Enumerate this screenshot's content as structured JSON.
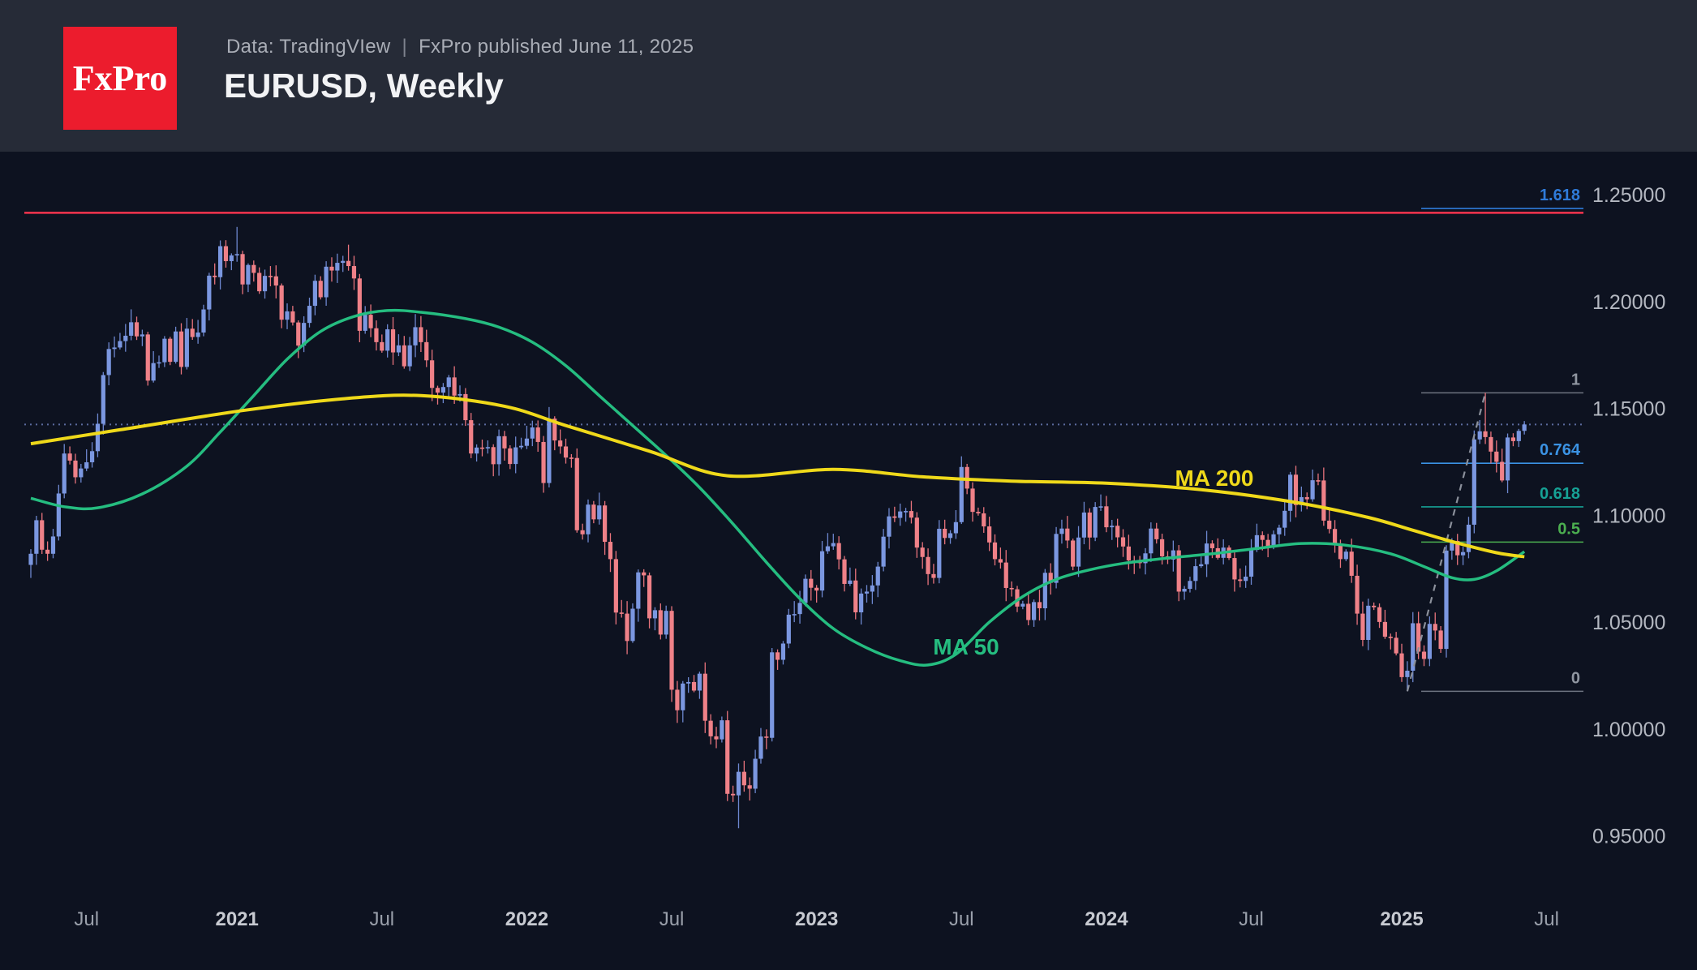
{
  "header": {
    "logo_text": "FxPro",
    "data_source": "Data: TradingVIew",
    "separator": "|",
    "published": "FxPro published June 11, 2025",
    "title": "EURUSD, Weekly"
  },
  "colors": {
    "header_bg": "#262b37",
    "chart_bg": "#0d1220",
    "logo_red": "#ec1c2d",
    "bull_body": "#7b97e0",
    "bull_wick": "#6d87cf",
    "bear_body": "#ef8188",
    "bear_wick": "#e8737c",
    "ma50": "#25bd80",
    "ma200": "#efd91a",
    "red_line": "#f5344e",
    "last_price_dotted": "#5b6b9e",
    "trendline_dashed": "#8b909b",
    "fib_blue_deep": "#2f7bd9",
    "fib_blue": "#3b93e4",
    "fib_teal": "#16a195",
    "fib_green": "#4caf50",
    "fib_gray_text": "#9096a1",
    "fib_gray_line": "#6e7480"
  },
  "chart_data": {
    "type": "candlestick",
    "symbol": "EURUSD",
    "timeframe": "Weekly",
    "title": "EURUSD, Weekly",
    "legend_entries": [
      "MA 50",
      "MA 200"
    ],
    "grid": false,
    "y_axis": {
      "side": "right",
      "range": [
        0.93,
        1.27
      ],
      "ticks": [
        {
          "label": "1.25000",
          "price": 1.25
        },
        {
          "label": "1.20000",
          "price": 1.2
        },
        {
          "label": "1.15000",
          "price": 1.15
        },
        {
          "label": "1.10000",
          "price": 1.1
        },
        {
          "label": "1.05000",
          "price": 1.05
        },
        {
          "label": "1.00000",
          "price": 1.0
        },
        {
          "label": "0.95000",
          "price": 0.95
        }
      ]
    },
    "x_axis": {
      "first_candle_week_of": "2020-04-20",
      "weeks_per_candle": 1,
      "ticks": [
        {
          "label": "Jul",
          "week": 10,
          "major": false
        },
        {
          "label": "2021",
          "week": 37,
          "major": true
        },
        {
          "label": "Jul",
          "week": 63,
          "major": false
        },
        {
          "label": "2022",
          "week": 89,
          "major": true
        },
        {
          "label": "Jul",
          "week": 115,
          "major": false
        },
        {
          "label": "2023",
          "week": 141,
          "major": true
        },
        {
          "label": "Jul",
          "week": 167,
          "major": false
        },
        {
          "label": "2024",
          "week": 193,
          "major": true
        },
        {
          "label": "Jul",
          "week": 219,
          "major": false
        },
        {
          "label": "2025",
          "week": 246,
          "major": true
        },
        {
          "label": "Jul",
          "week": 272,
          "major": false
        }
      ]
    },
    "first_open": 1.0768,
    "weekly_closes": [
      1.082,
      1.0977,
      1.0839,
      1.082,
      1.0901,
      1.1102,
      1.1289,
      1.1256,
      1.1178,
      1.1219,
      1.1248,
      1.13,
      1.1428,
      1.1656,
      1.1778,
      1.1785,
      1.1815,
      1.184,
      1.1903,
      1.1837,
      1.1846,
      1.163,
      1.1712,
      1.1716,
      1.1826,
      1.1718,
      1.186,
      1.1694,
      1.1873,
      1.1834,
      1.1855,
      1.1963,
      1.2121,
      1.2114,
      1.2259,
      1.2189,
      1.2216,
      1.2222,
      1.208,
      1.2171,
      1.2134,
      1.2048,
      1.212,
      1.2118,
      1.2075,
      1.1915,
      1.1954,
      1.1902,
      1.1794,
      1.19,
      1.198,
      1.2097,
      1.202,
      1.2163,
      1.2145,
      1.2181,
      1.219,
      1.2166,
      1.2108,
      1.1863,
      1.1938,
      1.1875,
      1.181,
      1.177,
      1.187,
      1.1762,
      1.1795,
      1.1697,
      1.1795,
      1.188,
      1.181,
      1.1725,
      1.1596,
      1.1574,
      1.16,
      1.1645,
      1.156,
      1.1567,
      1.1445,
      1.1289,
      1.1317,
      1.1313,
      1.1319,
      1.1239,
      1.137,
      1.1313,
      1.124,
      1.1318,
      1.1325,
      1.1359,
      1.1411,
      1.1343,
      1.1151,
      1.1452,
      1.135,
      1.1322,
      1.127,
      1.1268,
      1.093,
      1.0911,
      1.105,
      1.0981,
      1.1046,
      1.0876,
      1.0795,
      1.0545,
      1.054,
      1.0412,
      1.0563,
      1.0733,
      1.0719,
      1.0518,
      1.0556,
      1.0442,
      1.0553,
      1.0184,
      1.0088,
      1.0213,
      1.022,
      1.018,
      1.0259,
      1.0039,
      0.9966,
      0.9952,
      1.0041,
      0.9697,
      0.969,
      0.98,
      0.9737,
      0.9721,
      0.9861,
      0.9965,
      0.9959,
      1.0359,
      1.0324,
      1.04,
      1.0535,
      1.0538,
      1.059,
      1.0703,
      1.0661,
      1.0648,
      1.0832,
      1.0855,
      1.087,
      1.0794,
      1.0679,
      1.0695,
      1.0546,
      1.0634,
      1.0643,
      1.0672,
      1.076,
      1.09,
      1.0995,
      1.0988,
      1.1018,
      1.102,
      1.0989,
      1.0849,
      1.0805,
      1.0725,
      1.0707,
      1.0937,
      1.0894,
      1.0916,
      1.0968,
      1.1226,
      1.1125,
      1.1016,
      1.1009,
      1.0948,
      1.0873,
      1.0795,
      1.0779,
      1.066,
      1.0654,
      1.0573,
      1.0586,
      1.051,
      1.0594,
      1.0565,
      1.0731,
      1.0684,
      1.0913,
      1.0938,
      1.0882,
      1.076,
      1.0896,
      1.1013,
      1.0896,
      1.1039,
      1.1042,
      1.0944,
      1.0951,
      1.0897,
      1.0854,
      1.0789,
      1.0784,
      1.0776,
      1.0822,
      1.0938,
      1.0888,
      1.0808,
      1.0793,
      1.0836,
      1.0643,
      1.0656,
      1.0693,
      1.0762,
      1.0771,
      1.0868,
      1.0846,
      1.0801,
      1.0849,
      1.08,
      1.07,
      1.0693,
      1.0713,
      1.0838,
      1.0907,
      1.0885,
      1.0855,
      1.0911,
      1.0942,
      1.1021,
      1.119,
      1.1048,
      1.1085,
      1.1075,
      1.1164,
      1.1163,
      1.0975,
      1.0936,
      1.0867,
      1.0795,
      1.083,
      1.0717,
      1.054,
      1.0417,
      1.0577,
      1.057,
      1.0501,
      1.0432,
      1.0427,
      1.0354,
      1.0243,
      1.0273,
      1.0495,
      1.0362,
      1.0328,
      1.0492,
      1.0461,
      1.0375,
      1.0835,
      1.088,
      1.0813,
      1.0828,
      1.0956,
      1.1355,
      1.1393,
      1.1366,
      1.1298,
      1.125,
      1.1163,
      1.1364,
      1.1347,
      1.1395,
      1.1425
    ],
    "wick_overrides": {
      "37": {
        "high": 1.2349
      },
      "57": {
        "high": 1.2266
      },
      "127": {
        "low": 0.9536
      },
      "167": {
        "high": 1.1276
      },
      "230": {
        "high": 1.1214
      },
      "247": {
        "low": 1.0178
      },
      "261": {
        "high": 1.1573
      }
    },
    "ma50": {
      "label": "MA 50",
      "points": [
        [
          0,
          1.108
        ],
        [
          6,
          1.104
        ],
        [
          12,
          1.1035
        ],
        [
          20,
          1.11
        ],
        [
          28,
          1.123
        ],
        [
          34,
          1.139
        ],
        [
          40,
          1.156
        ],
        [
          46,
          1.173
        ],
        [
          52,
          1.186
        ],
        [
          58,
          1.193
        ],
        [
          64,
          1.1958
        ],
        [
          70,
          1.195
        ],
        [
          78,
          1.192
        ],
        [
          84,
          1.188
        ],
        [
          90,
          1.181
        ],
        [
          96,
          1.17
        ],
        [
          102,
          1.156
        ],
        [
          108,
          1.142
        ],
        [
          114,
          1.128
        ],
        [
          120,
          1.113
        ],
        [
          126,
          1.096
        ],
        [
          132,
          1.078
        ],
        [
          138,
          1.061
        ],
        [
          144,
          1.047
        ],
        [
          150,
          1.038
        ],
        [
          156,
          1.032
        ],
        [
          161,
          1.03
        ],
        [
          166,
          1.035
        ],
        [
          172,
          1.05
        ],
        [
          178,
          1.062
        ],
        [
          184,
          1.07
        ],
        [
          190,
          1.0745
        ],
        [
          196,
          1.0775
        ],
        [
          204,
          1.08
        ],
        [
          212,
          1.082
        ],
        [
          220,
          1.0845
        ],
        [
          228,
          1.0868
        ],
        [
          236,
          1.086
        ],
        [
          244,
          1.082
        ],
        [
          250,
          1.076
        ],
        [
          255,
          1.0708
        ],
        [
          259,
          1.07
        ],
        [
          263,
          1.074
        ],
        [
          268,
          1.083
        ]
      ]
    },
    "ma200": {
      "label": "MA 200",
      "points": [
        [
          0,
          1.1335
        ],
        [
          16,
          1.14
        ],
        [
          38,
          1.149
        ],
        [
          56,
          1.1545
        ],
        [
          70,
          1.156
        ],
        [
          85,
          1.151
        ],
        [
          96,
          1.142
        ],
        [
          111,
          1.13
        ],
        [
          125,
          1.1185
        ],
        [
          144,
          1.1215
        ],
        [
          160,
          1.118
        ],
        [
          176,
          1.116
        ],
        [
          193,
          1.115
        ],
        [
          210,
          1.112
        ],
        [
          227,
          1.106
        ],
        [
          240,
          1.099
        ],
        [
          248,
          1.093
        ],
        [
          256,
          1.087
        ],
        [
          263,
          1.0825
        ],
        [
          268,
          1.0806
        ]
      ]
    },
    "fibonacci": {
      "anchors": {
        "low_week": 247,
        "low_price": 1.01766,
        "high_week": 261,
        "high_price": 1.15728
      },
      "levels": [
        {
          "label": "1.618",
          "price": 1.24354,
          "color_key": "fib_blue_deep"
        },
        {
          "label": "1",
          "price": 1.15728,
          "color_key": "fib_gray"
        },
        {
          "label": "0.764",
          "price": 1.12433,
          "color_key": "fib_blue"
        },
        {
          "label": "0.618",
          "price": 1.10395,
          "color_key": "fib_teal"
        },
        {
          "label": "0.5",
          "price": 1.08747,
          "color_key": "fib_green"
        },
        {
          "label": "0",
          "price": 1.01766,
          "color_key": "fib_gray"
        }
      ]
    },
    "horizontal_line": {
      "price": 1.2415
    },
    "last_price_line": {
      "price": 1.1425,
      "style": "dotted"
    }
  }
}
